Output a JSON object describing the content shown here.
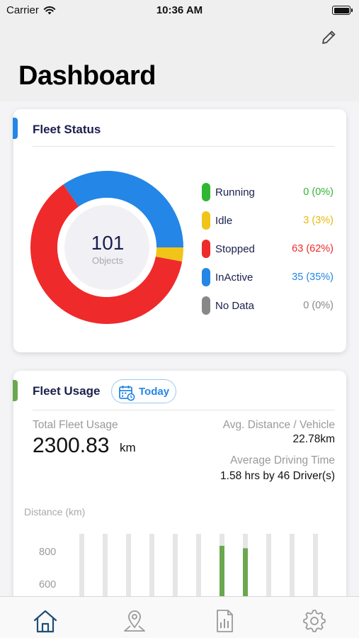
{
  "status_bar": {
    "carrier": "Carrier",
    "time": "10:36 AM"
  },
  "header": {
    "title": "Dashboard"
  },
  "fleet_status": {
    "title": "Fleet Status",
    "accent_color": "#2486e6",
    "total": "101",
    "total_caption": "Objects",
    "items": [
      {
        "label": "Running",
        "value": "0 (0%)",
        "count": 0,
        "color": "#2fb633"
      },
      {
        "label": "Idle",
        "value": "3 (3%)",
        "count": 3,
        "color": "#f0c419"
      },
      {
        "label": "Stopped",
        "value": "63 (62%)",
        "count": 63,
        "color": "#ef2a2a"
      },
      {
        "label": "InActive",
        "value": "35 (35%)",
        "count": 35,
        "color": "#2486e6"
      },
      {
        "label": "No Data",
        "value": "0 (0%)",
        "count": 0,
        "color": "#888888"
      }
    ]
  },
  "fleet_usage": {
    "title": "Fleet Usage",
    "accent_color": "#6aa84f",
    "period_chip": "Today",
    "total_label": "Total Fleet Usage",
    "total_value": "2300.83",
    "total_unit": "km",
    "avg_distance_label": "Avg. Distance / Vehicle",
    "avg_distance_value": "22.78km",
    "avg_driving_label": "Average Driving Time",
    "avg_driving_value": "1.58 hrs by 46 Driver(s)"
  },
  "chart_data": {
    "type": "bar",
    "ylabel": "Distance (km)",
    "y_ticks": [
      "800",
      "600"
    ],
    "bar_count": 11,
    "highlighted": [
      {
        "index": 6,
        "value": 835
      },
      {
        "index": 7,
        "value": 820
      }
    ],
    "bar_color": "#6aa84f",
    "track_color": "#e6e6e6"
  },
  "tabbar": {
    "tabs": [
      {
        "icon": "home-icon",
        "active": true
      },
      {
        "icon": "location-pin-icon",
        "active": false
      },
      {
        "icon": "report-icon",
        "active": false
      },
      {
        "icon": "gear-icon",
        "active": false
      }
    ],
    "active_color": "#1f4e79",
    "inactive_color": "#9a9a9a"
  }
}
